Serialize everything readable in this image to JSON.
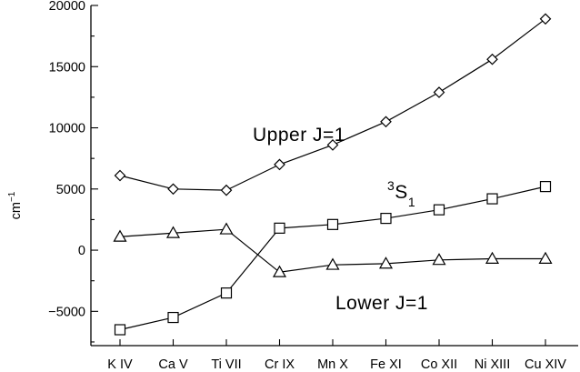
{
  "chart_data": {
    "type": "line",
    "title": "",
    "xlabel": "",
    "ylabel": "cm",
    "ylabel_superscript": "−1",
    "ylim": [
      -7800,
      20000
    ],
    "yticks": [
      -5000,
      0,
      5000,
      10000,
      15000,
      20000
    ],
    "ytick_labels": [
      "−5000",
      "0",
      "5000",
      "10000",
      "15000",
      "20000"
    ],
    "grid": false,
    "categories": [
      "K IV",
      "Ca V",
      "Ti VII",
      "Cr IX",
      "Mn X",
      "Fe XI",
      "Co XII",
      "Ni XIII",
      "Cu XIV"
    ],
    "x": [
      1,
      2,
      3,
      4,
      5,
      6,
      7,
      8,
      9
    ],
    "series": [
      {
        "marker": "diamond",
        "values": [
          6100,
          5000,
          4900,
          7000,
          8600,
          10500,
          12900,
          15600,
          18900
        ]
      },
      {
        "marker": "square",
        "values": [
          -6500,
          -5500,
          -3500,
          1800,
          2100,
          2600,
          3300,
          4200,
          5200
        ]
      },
      {
        "marker": "triangle",
        "values": [
          1100,
          1400,
          1700,
          -1800,
          -1200,
          -1100,
          -800,
          -700,
          -700
        ]
      }
    ],
    "annotations": [
      {
        "text": "Upper J=1",
        "at_series": 0
      },
      {
        "text": "S",
        "prefix_sup": "3",
        "suffix_sub": "1",
        "at_series": 1
      },
      {
        "text": "Lower J=1",
        "at_series": 2
      }
    ]
  }
}
